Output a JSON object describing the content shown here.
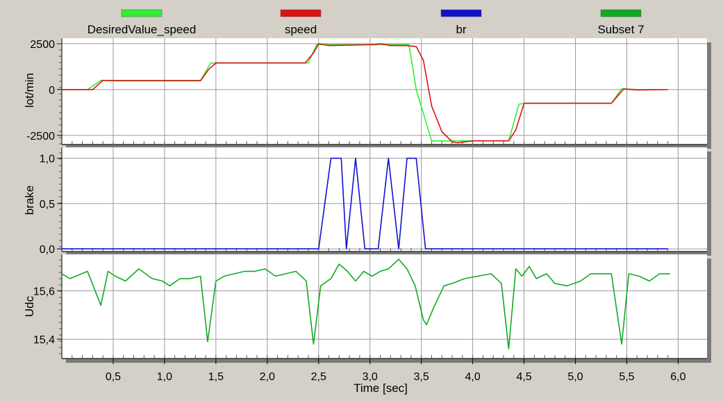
{
  "colors": {
    "background": "#d4d0c8",
    "plot_background": "#ffffff",
    "shadow": "#7a7a7a",
    "grid": "#9a9a9a",
    "desired": "#33ee33",
    "speed": "#dd1111",
    "br": "#1111cc",
    "subset7": "#11aa22"
  },
  "legend": [
    {
      "label": "DesiredValue_speed",
      "color": "#33ee33"
    },
    {
      "label": "speed",
      "color": "#dd1111"
    },
    {
      "label": "br",
      "color": "#1111cc"
    },
    {
      "label": "Subset 7",
      "color": "#11aa22"
    }
  ],
  "chart_data": {
    "type": "line",
    "xlabel": "Time [sec]",
    "xlim": [
      0,
      6.2
    ],
    "xticks": [
      0.5,
      1.0,
      1.5,
      2.0,
      2.5,
      3.0,
      3.5,
      4.0,
      4.5,
      5.0,
      5.5,
      6.0
    ],
    "xtick_labels": [
      "0,5",
      "1,0",
      "1,5",
      "2,0",
      "2,5",
      "3,0",
      "3,5",
      "4,0",
      "4,5",
      "5,0",
      "5,5",
      "6,0"
    ],
    "grid": true,
    "panels": [
      {
        "ylabel": "lot/min",
        "ylim": [
          -3000,
          2800
        ],
        "yticks": [
          2500,
          0,
          -2500
        ],
        "ytick_labels": [
          "2500",
          "0",
          "-2500"
        ],
        "series": [
          {
            "name": "DesiredValue_speed",
            "color": "#33ee33",
            "x": [
              0.0,
              0.25,
              0.38,
              0.5,
              1.0,
              1.35,
              1.45,
              2.4,
              2.48,
              2.55,
              3.1,
              3.38,
              3.45,
              3.6,
              4.35,
              4.45,
              4.5,
              5.35,
              5.45,
              5.6,
              5.8
            ],
            "y": [
              0,
              0,
              500,
              500,
              500,
              500,
              1450,
              1450,
              2450,
              2450,
              2450,
              2450,
              0,
              -2800,
              -2800,
              -800,
              -750,
              -750,
              50,
              0,
              0
            ]
          },
          {
            "name": "speed",
            "color": "#dd1111",
            "x": [
              0.0,
              0.25,
              0.3,
              0.4,
              0.5,
              1.0,
              1.35,
              1.43,
              1.5,
              2.37,
              2.45,
              2.5,
              2.6,
              3.05,
              3.1,
              3.2,
              3.35,
              3.45,
              3.52,
              3.6,
              3.7,
              3.8,
              3.85,
              4.0,
              4.35,
              4.42,
              4.5,
              5.35,
              5.47,
              5.6,
              5.9
            ],
            "y": [
              0,
              0,
              0,
              500,
              480,
              480,
              480,
              1100,
              1450,
              1450,
              2000,
              2500,
              2400,
              2450,
              2500,
              2400,
              2400,
              2350,
              1600,
              -900,
              -2300,
              -2850,
              -2900,
              -2800,
              -2800,
              -2200,
              -750,
              -750,
              30,
              -20,
              0
            ]
          }
        ]
      },
      {
        "ylabel": "brake",
        "ylim": [
          -0.03,
          1.12
        ],
        "yticks": [
          1.0,
          0.5,
          0.0
        ],
        "ytick_labels": [
          "1,0",
          "0,5",
          "0,0"
        ],
        "series": [
          {
            "name": "br",
            "color": "#1111cc",
            "x": [
              0.0,
              2.5,
              2.62,
              2.72,
              2.77,
              2.86,
              2.95,
              3.08,
              3.18,
              3.28,
              3.36,
              3.45,
              3.54,
              5.9
            ],
            "y": [
              0,
              0,
              1,
              1,
              0,
              1,
              0,
              0,
              1,
              0,
              1,
              1,
              0,
              0
            ]
          }
        ]
      },
      {
        "ylabel": "Udc",
        "ylim": [
          15.32,
          15.75
        ],
        "yticks": [
          15.6,
          15.4
        ],
        "ytick_labels": [
          "15,6",
          "15,4"
        ],
        "series": [
          {
            "name": "Subset 7",
            "color": "#11aa22",
            "x": [
              0.0,
              0.08,
              0.25,
              0.38,
              0.45,
              0.52,
              0.62,
              0.75,
              0.88,
              0.98,
              1.05,
              1.15,
              1.25,
              1.35,
              1.42,
              1.5,
              1.58,
              1.68,
              1.78,
              1.88,
              1.98,
              2.08,
              2.18,
              2.28,
              2.38,
              2.45,
              2.52,
              2.62,
              2.7,
              2.78,
              2.86,
              2.94,
              3.02,
              3.1,
              3.18,
              3.28,
              3.36,
              3.44,
              3.52,
              3.55,
              3.62,
              3.72,
              3.8,
              3.92,
              4.05,
              4.18,
              4.28,
              4.35,
              4.42,
              4.48,
              4.55,
              4.62,
              4.72,
              4.8,
              4.92,
              5.05,
              5.15,
              5.25,
              5.35,
              5.45,
              5.52,
              5.62,
              5.72,
              5.82,
              5.92
            ],
            "y": [
              15.67,
              15.65,
              15.68,
              15.54,
              15.68,
              15.66,
              15.64,
              15.69,
              15.65,
              15.64,
              15.62,
              15.65,
              15.65,
              15.66,
              15.39,
              15.64,
              15.66,
              15.67,
              15.68,
              15.68,
              15.69,
              15.66,
              15.67,
              15.68,
              15.64,
              15.38,
              15.62,
              15.65,
              15.71,
              15.68,
              15.64,
              15.68,
              15.66,
              15.68,
              15.69,
              15.73,
              15.69,
              15.62,
              15.48,
              15.46,
              15.53,
              15.62,
              15.63,
              15.65,
              15.66,
              15.67,
              15.63,
              15.36,
              15.69,
              15.66,
              15.7,
              15.65,
              15.67,
              15.63,
              15.62,
              15.64,
              15.67,
              15.67,
              15.67,
              15.38,
              15.67,
              15.66,
              15.64,
              15.67,
              15.67
            ]
          }
        ]
      }
    ]
  }
}
